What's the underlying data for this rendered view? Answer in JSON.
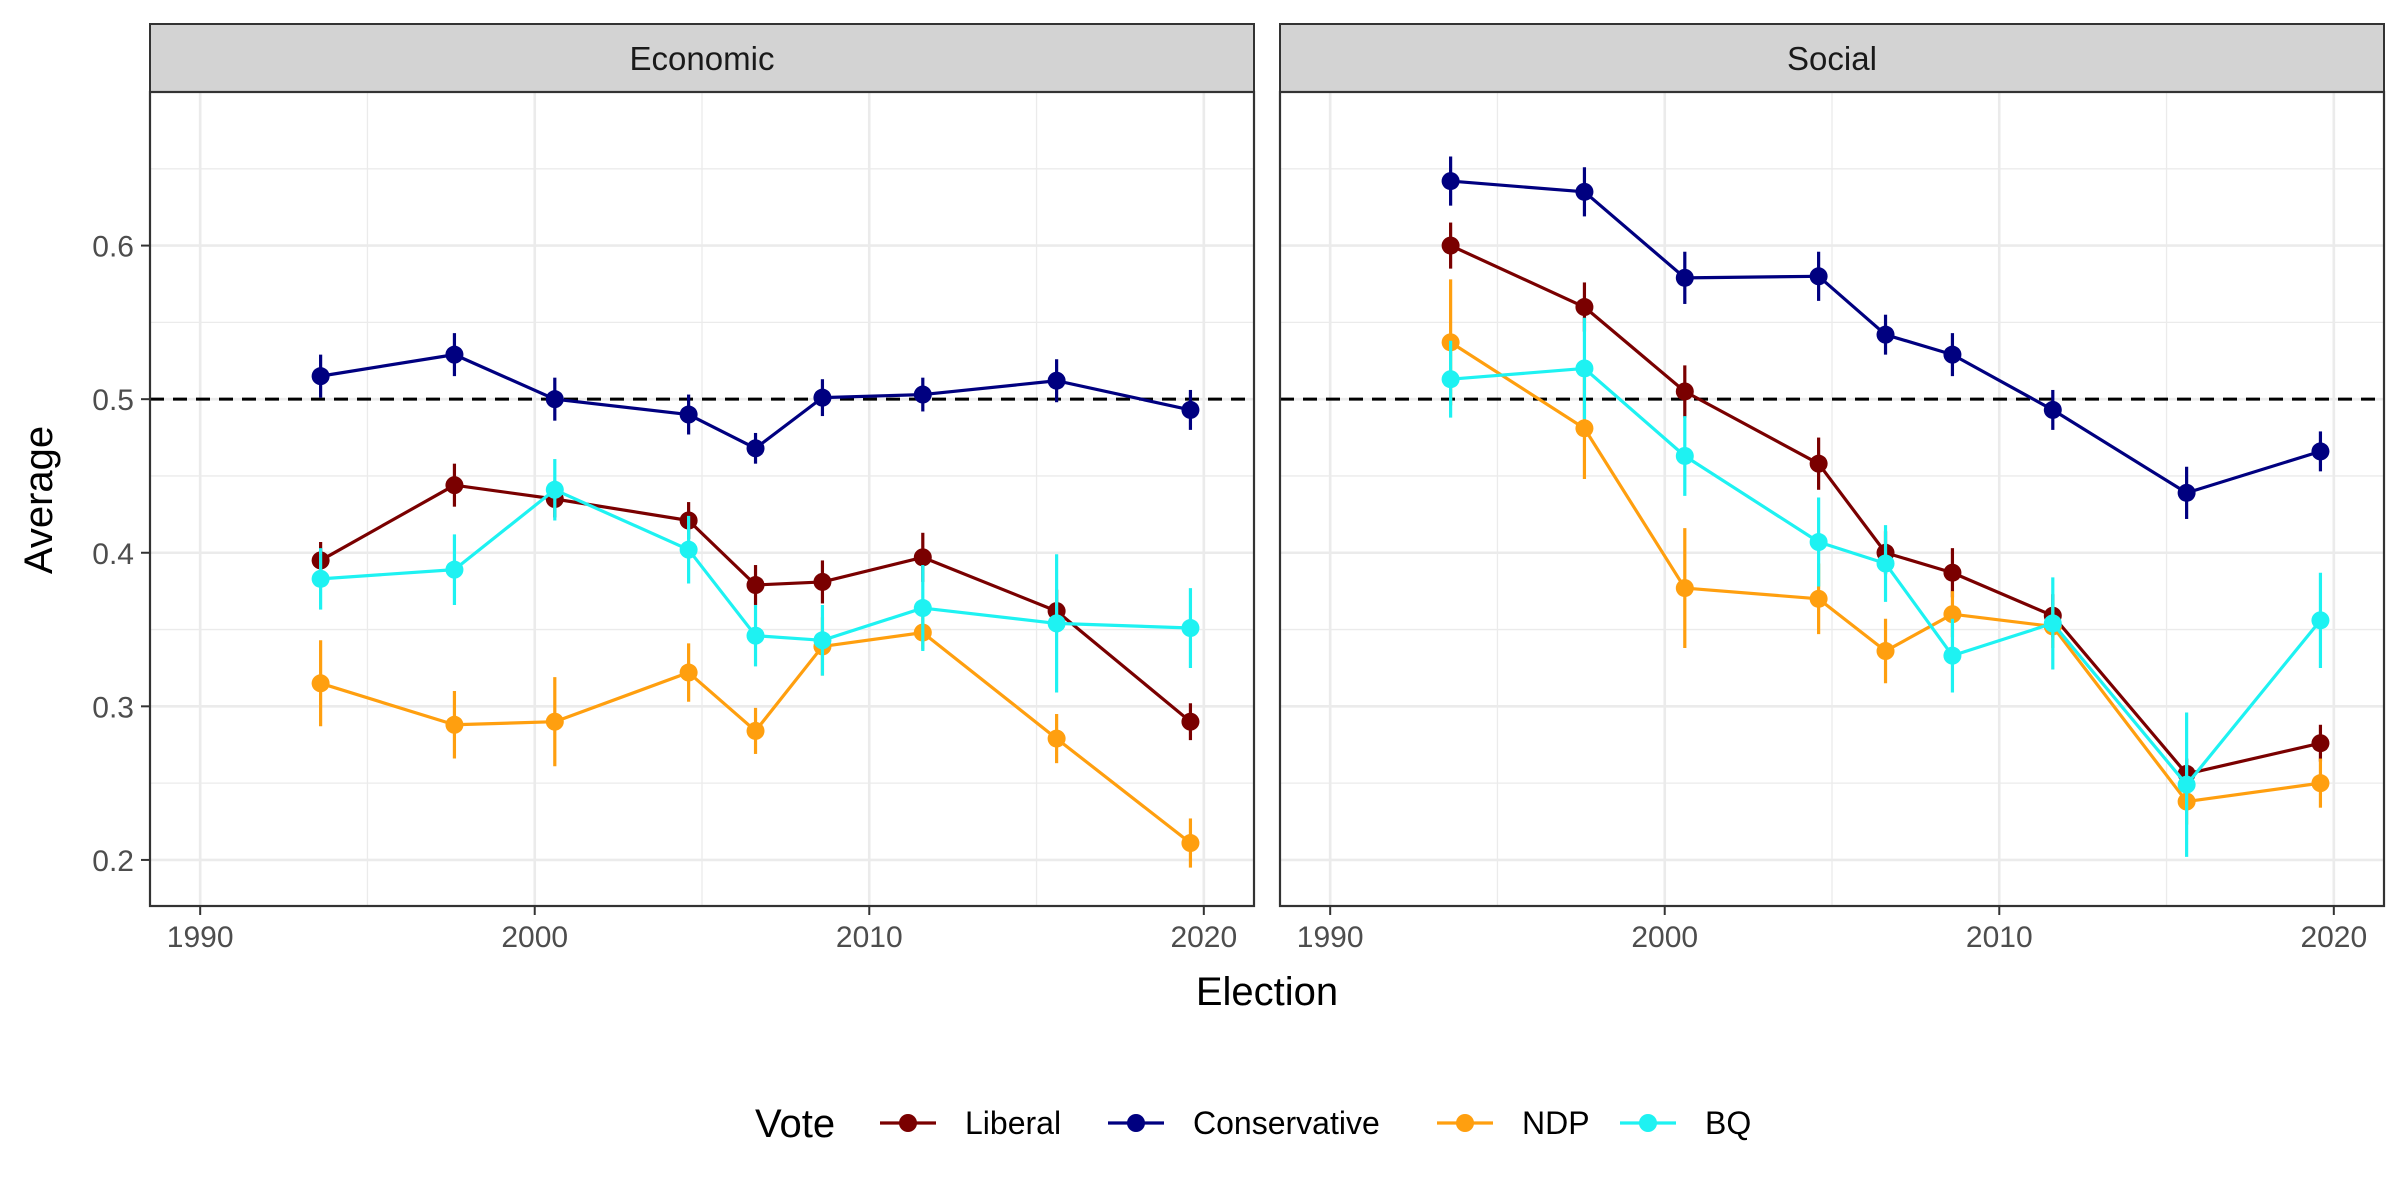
{
  "chart_data": {
    "type": "line",
    "xlabel": "Election",
    "ylabel": "Average",
    "xlim": [
      1988.5,
      2021.5
    ],
    "ylim": [
      0.17,
      0.7
    ],
    "x_ticks": [
      1990,
      2000,
      2010,
      2020
    ],
    "x_tick_labels": [
      "1990",
      "2000",
      "2010",
      "2020"
    ],
    "y_ticks": [
      0.2,
      0.3,
      0.4,
      0.5,
      0.6
    ],
    "y_tick_labels": [
      "0.2",
      "0.3",
      "0.4",
      "0.5",
      "0.6"
    ],
    "reference_line": 0.5,
    "grid": true,
    "legend": {
      "title": "Vote",
      "position": "bottom",
      "entries": [
        "Liberal",
        "Conservative",
        "NDP",
        "BQ"
      ]
    },
    "series_colors": {
      "Liberal": "#7a0000",
      "Conservative": "#000080",
      "NDP": "#ff9f0f",
      "BQ": "#1ef2f2"
    },
    "panels": [
      {
        "title": "Economic",
        "series": [
          {
            "name": "Liberal",
            "x": [
              1993.6,
              1997.6,
              2000.6,
              2004.6,
              2006.6,
              2008.6,
              2011.6,
              2015.6,
              2019.6
            ],
            "y": [
              0.395,
              0.444,
              0.435,
              0.421,
              0.379,
              0.381,
              0.397,
              0.362,
              0.29
            ],
            "ci": [
              [
                0.383,
                0.407
              ],
              [
                0.43,
                0.458
              ],
              [
                0.423,
                0.447
              ],
              [
                0.409,
                0.433
              ],
              [
                0.366,
                0.392
              ],
              [
                0.367,
                0.395
              ],
              [
                0.381,
                0.413
              ],
              [
                0.348,
                0.376
              ],
              [
                0.278,
                0.302
              ]
            ]
          },
          {
            "name": "Conservative",
            "x": [
              1993.6,
              1997.6,
              2000.6,
              2004.6,
              2006.6,
              2008.6,
              2011.6,
              2015.6,
              2019.6
            ],
            "y": [
              0.515,
              0.529,
              0.5,
              0.49,
              0.468,
              0.501,
              0.503,
              0.512,
              0.493
            ],
            "ci": [
              [
                0.501,
                0.529
              ],
              [
                0.515,
                0.543
              ],
              [
                0.486,
                0.514
              ],
              [
                0.477,
                0.503
              ],
              [
                0.458,
                0.478
              ],
              [
                0.489,
                0.513
              ],
              [
                0.492,
                0.514
              ],
              [
                0.498,
                0.526
              ],
              [
                0.48,
                0.506
              ]
            ]
          },
          {
            "name": "NDP",
            "x": [
              1993.6,
              1997.6,
              2000.6,
              2004.6,
              2006.6,
              2008.6,
              2011.6,
              2015.6,
              2019.6
            ],
            "y": [
              0.315,
              0.288,
              0.29,
              0.322,
              0.284,
              0.339,
              0.348,
              0.279,
              0.211
            ],
            "ci": [
              [
                0.287,
                0.343
              ],
              [
                0.266,
                0.31
              ],
              [
                0.261,
                0.319
              ],
              [
                0.303,
                0.341
              ],
              [
                0.269,
                0.299
              ],
              [
                0.32,
                0.358
              ],
              [
                0.337,
                0.359
              ],
              [
                0.263,
                0.295
              ],
              [
                0.195,
                0.227
              ]
            ]
          },
          {
            "name": "BQ",
            "x": [
              1993.6,
              1997.6,
              2000.6,
              2004.6,
              2006.6,
              2008.6,
              2011.6,
              2015.6,
              2019.6
            ],
            "y": [
              0.383,
              0.389,
              0.441,
              0.402,
              0.346,
              0.343,
              0.364,
              0.354,
              0.351
            ],
            "ci": [
              [
                0.363,
                0.403
              ],
              [
                0.366,
                0.412
              ],
              [
                0.421,
                0.461
              ],
              [
                0.38,
                0.424
              ],
              [
                0.326,
                0.366
              ],
              [
                0.32,
                0.366
              ],
              [
                0.336,
                0.392
              ],
              [
                0.309,
                0.399
              ],
              [
                0.325,
                0.377
              ]
            ]
          }
        ]
      },
      {
        "title": "Social",
        "series": [
          {
            "name": "Liberal",
            "x": [
              1993.6,
              1997.6,
              2000.6,
              2004.6,
              2006.6,
              2008.6,
              2011.6,
              2015.6,
              2019.6
            ],
            "y": [
              0.6,
              0.56,
              0.505,
              0.458,
              0.4,
              0.387,
              0.359,
              0.256,
              0.276
            ],
            "ci": [
              [
                0.585,
                0.615
              ],
              [
                0.544,
                0.576
              ],
              [
                0.488,
                0.522
              ],
              [
                0.441,
                0.475
              ],
              [
                0.386,
                0.414
              ],
              [
                0.371,
                0.403
              ],
              [
                0.345,
                0.373
              ],
              [
                0.246,
                0.266
              ],
              [
                0.264,
                0.288
              ]
            ]
          },
          {
            "name": "Conservative",
            "x": [
              1993.6,
              1997.6,
              2000.6,
              2004.6,
              2006.6,
              2008.6,
              2011.6,
              2015.6,
              2019.6
            ],
            "y": [
              0.642,
              0.635,
              0.579,
              0.58,
              0.542,
              0.529,
              0.493,
              0.439,
              0.466
            ],
            "ci": [
              [
                0.626,
                0.658
              ],
              [
                0.619,
                0.651
              ],
              [
                0.562,
                0.596
              ],
              [
                0.564,
                0.596
              ],
              [
                0.529,
                0.555
              ],
              [
                0.515,
                0.543
              ],
              [
                0.48,
                0.506
              ],
              [
                0.422,
                0.456
              ],
              [
                0.453,
                0.479
              ]
            ]
          },
          {
            "name": "NDP",
            "x": [
              1993.6,
              1997.6,
              2000.6,
              2004.6,
              2006.6,
              2008.6,
              2011.6,
              2015.6,
              2019.6
            ],
            "y": [
              0.537,
              0.481,
              0.377,
              0.37,
              0.336,
              0.36,
              0.352,
              0.238,
              0.25
            ],
            "ci": [
              [
                0.496,
                0.578
              ],
              [
                0.448,
                0.514
              ],
              [
                0.338,
                0.416
              ],
              [
                0.347,
                0.393
              ],
              [
                0.315,
                0.357
              ],
              [
                0.345,
                0.375
              ],
              [
                0.338,
                0.366
              ],
              [
                0.223,
                0.253
              ],
              [
                0.234,
                0.266
              ]
            ]
          },
          {
            "name": "BQ",
            "x": [
              1993.6,
              1997.6,
              2000.6,
              2004.6,
              2006.6,
              2008.6,
              2011.6,
              2015.6,
              2019.6
            ],
            "y": [
              0.513,
              0.52,
              0.463,
              0.407,
              0.393,
              0.333,
              0.354,
              0.249,
              0.356
            ],
            "ci": [
              [
                0.488,
                0.538
              ],
              [
                0.487,
                0.553
              ],
              [
                0.437,
                0.489
              ],
              [
                0.378,
                0.436
              ],
              [
                0.368,
                0.418
              ],
              [
                0.309,
                0.357
              ],
              [
                0.324,
                0.384
              ],
              [
                0.202,
                0.296
              ],
              [
                0.325,
                0.387
              ]
            ]
          }
        ]
      }
    ]
  }
}
